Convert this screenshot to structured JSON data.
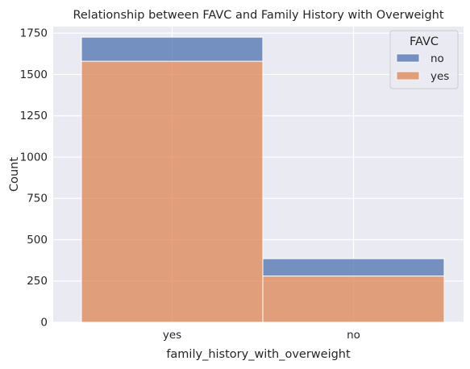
{
  "chart_data": {
    "type": "bar",
    "stacked": true,
    "title": "Relationship between FAVC and Family History with Overweight",
    "xlabel": "family_history_with_overweight",
    "ylabel": "Count",
    "categories": [
      "yes",
      "no"
    ],
    "series": [
      {
        "name": "no",
        "values": [
          146,
          105
        ],
        "color": "#4c72b0"
      },
      {
        "name": "yes",
        "values": [
          1580,
          280
        ],
        "color": "#dd8452"
      }
    ],
    "ylim": [
      0,
      1790
    ],
    "yticks": [
      0,
      250,
      500,
      750,
      1000,
      1250,
      1500,
      1750
    ],
    "legend": {
      "title": "FAVC",
      "placement": "top-right"
    },
    "grid": true
  }
}
